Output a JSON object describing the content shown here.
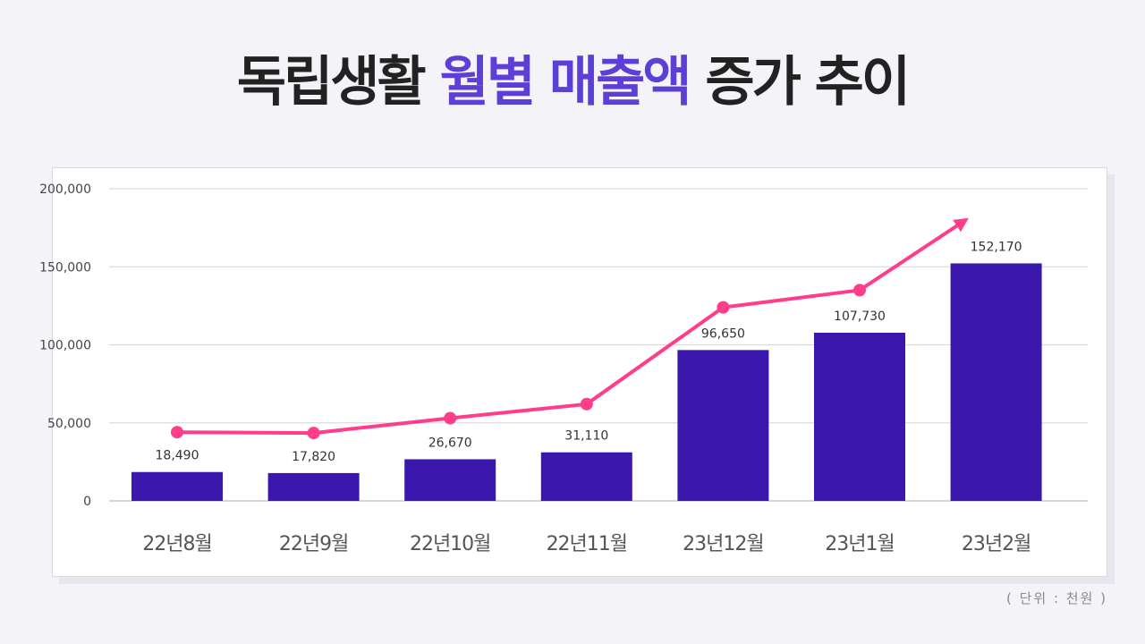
{
  "title": {
    "part1": "독립생활",
    "part2": "월별 매출액",
    "part3": "증가 추이"
  },
  "unit_note": "( 단위 : 천원 )",
  "colors": {
    "bar": "#3b17ad",
    "trend_line": "#ff3d8b",
    "title_accent": "#5b3fd6",
    "title_text": "#222222"
  },
  "chart_data": {
    "type": "bar",
    "categories": [
      "22년8월",
      "22년9월",
      "22년10월",
      "22년11월",
      "23년12월",
      "23년1월",
      "23년2월"
    ],
    "values": [
      18490,
      17820,
      26670,
      31110,
      96650,
      107730,
      152170
    ],
    "data_labels": [
      "18,490",
      "17,820",
      "26,670",
      "31,110",
      "96,650",
      "107,730",
      "152,170"
    ],
    "y_ticks": [
      0,
      50000,
      100000,
      150000,
      200000
    ],
    "y_tick_labels": [
      "0",
      "50,000",
      "100,000",
      "150,000",
      "200,000"
    ],
    "ylim": [
      0,
      200000
    ],
    "grid": true,
    "trend_line": {
      "style": "arrow",
      "values": [
        44000,
        43500,
        53000,
        62000,
        124000,
        135000,
        180000
      ]
    }
  }
}
